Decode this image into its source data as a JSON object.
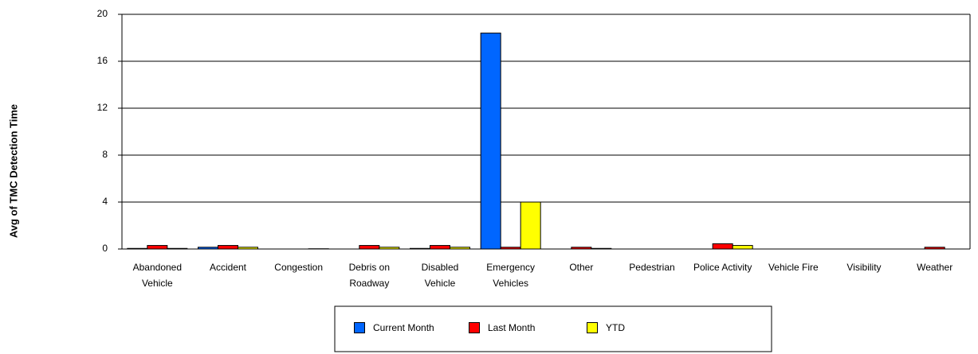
{
  "chart_data": {
    "type": "bar",
    "y_label": "Avg of TMC Detection Time",
    "categories": [
      "Abandoned Vehicle",
      "Accident",
      "Congestion",
      "Debris on Roadway",
      "Disabled Vehicle",
      "Emergency Vehicles",
      "Other",
      "Pedestrian",
      "Police Activity",
      "Vehicle Fire",
      "Visibility",
      "Weather"
    ],
    "series": [
      {
        "name": "Current Month",
        "color": "#0066ff",
        "values": [
          0.05,
          0.15,
          0,
          0,
          0.05,
          18.4,
          0,
          0,
          0,
          0,
          0,
          0
        ]
      },
      {
        "name": "Last Month",
        "color": "#ff0000",
        "values": [
          0.3,
          0.3,
          0,
          0.3,
          0.3,
          0.15,
          0.15,
          0,
          0.45,
          0,
          0,
          0.15
        ]
      },
      {
        "name": "YTD",
        "color": "#ffff00",
        "values": [
          0.05,
          0.15,
          0.02,
          0.15,
          0.15,
          4,
          0.05,
          0,
          0.3,
          0,
          0,
          0
        ]
      }
    ],
    "ylim": [
      0,
      20
    ],
    "yticks": [
      0,
      4,
      8,
      12,
      16,
      20
    ],
    "grid": true,
    "legend": "bottom"
  }
}
